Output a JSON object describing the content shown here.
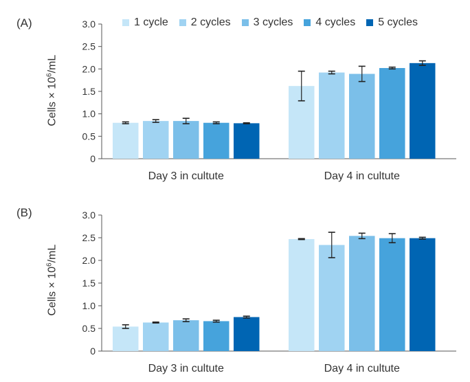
{
  "chart_data": [
    {
      "type": "bar",
      "panel_label": "(A)",
      "ylabel": "Cells × 10",
      "ylabel_exp": "6",
      "ylabel_unit": "/mL",
      "ylim": [
        0,
        3.0
      ],
      "yticks": [
        "0",
        "0.5",
        "1.0",
        "1.5",
        "2.0",
        "2.5",
        "3.0"
      ],
      "categories": [
        "Day 3 in cultute",
        "Day 4 in cultute"
      ],
      "legend_position": "top",
      "series": [
        {
          "name": "1 cycle",
          "color": "#c5e6f8",
          "values": [
            0.8,
            1.62
          ],
          "errors": [
            0.02,
            0.33
          ]
        },
        {
          "name": "2 cycles",
          "color": "#a0d3f2",
          "values": [
            0.84,
            1.92
          ],
          "errors": [
            0.03,
            0.03
          ]
        },
        {
          "name": "3 cycles",
          "color": "#7bbfe9",
          "values": [
            0.84,
            1.89
          ],
          "errors": [
            0.06,
            0.17
          ]
        },
        {
          "name": "4 cycles",
          "color": "#46a3dc",
          "values": [
            0.8,
            2.02
          ],
          "errors": [
            0.02,
            0.02
          ]
        },
        {
          "name": "5 cycles",
          "color": "#0065b3",
          "values": [
            0.79,
            2.13
          ],
          "errors": [
            0.01,
            0.05
          ]
        }
      ]
    },
    {
      "type": "bar",
      "panel_label": "(B)",
      "ylabel": "Cells × 10",
      "ylabel_exp": "6",
      "ylabel_unit": "/mL",
      "ylim": [
        0,
        3.0
      ],
      "yticks": [
        "0",
        "0.5",
        "1.0",
        "1.5",
        "2.0",
        "2.5",
        "3.0"
      ],
      "categories": [
        "Day 3 in cultute",
        "Day 4 in cultute"
      ],
      "series": [
        {
          "name": "1 cycle",
          "color": "#c5e6f8",
          "values": [
            0.54,
            2.47
          ],
          "errors": [
            0.04,
            0.01
          ]
        },
        {
          "name": "2 cycles",
          "color": "#a0d3f2",
          "values": [
            0.63,
            2.34
          ],
          "errors": [
            0.01,
            0.28
          ]
        },
        {
          "name": "3 cycles",
          "color": "#7bbfe9",
          "values": [
            0.68,
            2.54
          ],
          "errors": [
            0.03,
            0.06
          ]
        },
        {
          "name": "4 cycles",
          "color": "#46a3dc",
          "values": [
            0.66,
            2.49
          ],
          "errors": [
            0.02,
            0.1
          ]
        },
        {
          "name": "5 cycles",
          "color": "#0065b3",
          "values": [
            0.75,
            2.49
          ],
          "errors": [
            0.02,
            0.02
          ]
        }
      ]
    }
  ]
}
